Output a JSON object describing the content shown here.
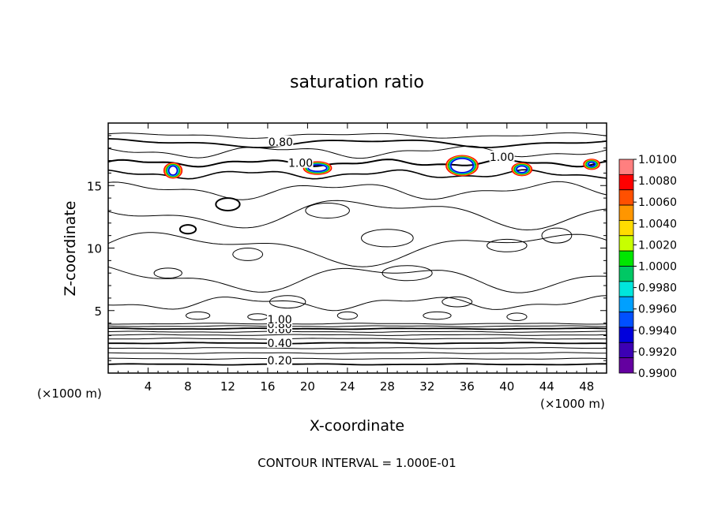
{
  "chart_data": {
    "type": "contour",
    "title": "saturation ratio",
    "xlabel": "X-coordinate",
    "ylabel": "Z-coordinate",
    "x_unit": "(×1000 m)",
    "z_unit": "(×1000 m)",
    "xlim": [
      0,
      50
    ],
    "ylim": [
      0,
      20
    ],
    "x_ticks": [
      4,
      8,
      12,
      16,
      20,
      24,
      28,
      32,
      36,
      40,
      44,
      48
    ],
    "y_ticks": [
      5,
      10,
      15
    ],
    "contour_interval_text": "CONTOUR INTERVAL = 1.000E-01",
    "contour_labels": [
      {
        "text": "0.80",
        "x": 17.3,
        "z": 18.5
      },
      {
        "text": "1.00",
        "x": 19.3,
        "z": 16.8
      },
      {
        "text": "1.00",
        "x": 39.5,
        "z": 17.3
      },
      {
        "text": "0.20",
        "x": 17.2,
        "z": 1.0
      },
      {
        "text": "0.40",
        "x": 17.2,
        "z": 2.4
      },
      {
        "text": "0.60",
        "x": 17.2,
        "z": 3.5
      },
      {
        "text": "0.80",
        "x": 17.2,
        "z": 3.9
      },
      {
        "text": "1.00",
        "x": 17.2,
        "z": 4.3
      }
    ],
    "colorbar": {
      "levels": [
        "1.0100",
        "1.0080",
        "1.0060",
        "1.0040",
        "1.0020",
        "1.0000",
        "0.9980",
        "0.9960",
        "0.9940",
        "0.9920",
        "0.9900"
      ],
      "colors": [
        "#ff7f7f",
        "#ff0000",
        "#ff5000",
        "#ff9600",
        "#ffdc00",
        "#c8ff00",
        "#00e600",
        "#00c864",
        "#00e6dc",
        "#00a0ff",
        "#0050ff",
        "#0000dc",
        "#3c00b4",
        "#6400a0"
      ]
    }
  }
}
